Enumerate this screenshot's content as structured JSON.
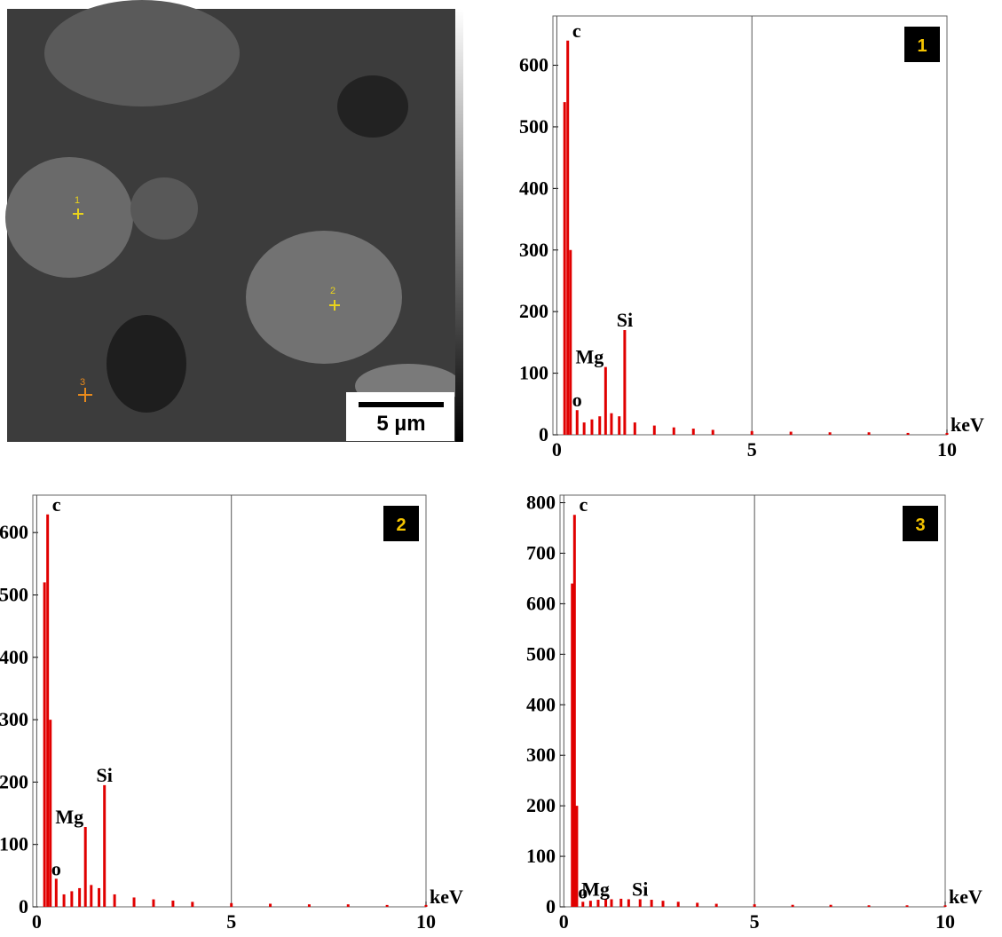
{
  "image": {
    "markers": [
      "1",
      "2",
      "3"
    ],
    "scale_bar": "5 µm"
  },
  "chart_data": [
    {
      "type": "spectrum",
      "panel": "1",
      "x_label": "keV",
      "color": "#e00000",
      "xlim": [
        -0.1,
        10
      ],
      "xticks": [
        0,
        5,
        10
      ],
      "ylim": [
        0,
        680
      ],
      "yticks": [
        0,
        100,
        200,
        300,
        400,
        500,
        600
      ],
      "peaks": [
        {
          "label": "c",
          "x": 0.28,
          "value": 640
        },
        {
          "label": "o",
          "x": 0.52,
          "value": 40
        },
        {
          "label": "Mg",
          "x": 1.25,
          "value": 110
        },
        {
          "label": "Si",
          "x": 1.74,
          "value": 170
        }
      ],
      "x": [
        0.2,
        0.35,
        0.7,
        0.9,
        1.1,
        1.4,
        1.6,
        2.0,
        2.5,
        3.0,
        3.5,
        4.0,
        5.0,
        6.0,
        7.0,
        8.0,
        9.0,
        10.0
      ],
      "values": [
        540,
        300,
        20,
        25,
        30,
        35,
        30,
        20,
        15,
        12,
        10,
        8,
        6,
        5,
        4,
        4,
        3,
        3
      ]
    },
    {
      "type": "spectrum",
      "panel": "2",
      "x_label": "keV",
      "color": "#e00000",
      "xlim": [
        -0.1,
        10
      ],
      "xticks": [
        0,
        5,
        10
      ],
      "ylim": [
        0,
        660
      ],
      "yticks": [
        0,
        100,
        200,
        300,
        400,
        500,
        600
      ],
      "peaks": [
        {
          "label": "c",
          "x": 0.28,
          "value": 629
        },
        {
          "label": "o",
          "x": 0.5,
          "value": 45
        },
        {
          "label": "Mg",
          "x": 1.25,
          "value": 128
        },
        {
          "label": "Si",
          "x": 1.74,
          "value": 195
        }
      ],
      "x": [
        0.2,
        0.35,
        0.7,
        0.9,
        1.1,
        1.4,
        1.6,
        2.0,
        2.5,
        3.0,
        3.5,
        4.0,
        5.0,
        6.0,
        7.0,
        8.0,
        9.0,
        10.0
      ],
      "values": [
        520,
        300,
        20,
        25,
        30,
        35,
        30,
        20,
        15,
        12,
        10,
        8,
        6,
        5,
        4,
        4,
        3,
        3
      ]
    },
    {
      "type": "spectrum",
      "panel": "3",
      "x_label": "keV",
      "color": "#e00000",
      "xlim": [
        -0.1,
        10
      ],
      "xticks": [
        0,
        5,
        10
      ],
      "ylim": [
        0,
        815
      ],
      "yticks": [
        0,
        100,
        200,
        300,
        400,
        500,
        600,
        700,
        800
      ],
      "peaks": [
        {
          "label": "c",
          "x": 0.28,
          "value": 776
        },
        {
          "label": "o",
          "x": 0.5,
          "value": 10
        },
        {
          "label": "Mg",
          "x": 1.25,
          "value": 15
        },
        {
          "label": "Si",
          "x": 2.0,
          "value": 15
        }
      ],
      "x": [
        0.22,
        0.34,
        0.7,
        0.9,
        1.1,
        1.5,
        1.7,
        2.3,
        2.6,
        3.0,
        3.5,
        4.0,
        5.0,
        6.0,
        7.0,
        8.0,
        9.0,
        10.0
      ],
      "values": [
        640,
        200,
        12,
        14,
        15,
        16,
        15,
        14,
        12,
        10,
        8,
        6,
        5,
        4,
        4,
        3,
        3,
        3
      ]
    }
  ]
}
